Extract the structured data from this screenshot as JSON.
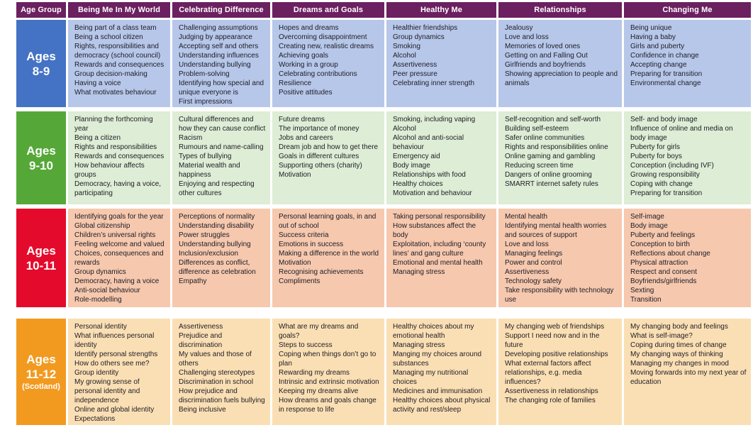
{
  "colors": {
    "header_bg": "#6B2060",
    "header_text": "#FFFFFF",
    "body_text": "#1D1D26",
    "page_bg": "#FFFFFF"
  },
  "table": {
    "columns": [
      "Age Group",
      "Being Me In My World",
      "Celebrating Difference",
      "Dreams and Goals",
      "Healthy Me",
      "Relationships",
      "Changing Me"
    ],
    "rows": [
      {
        "age_lines": [
          "Ages",
          "8-9"
        ],
        "colors": {
          "age_bg": "#4472C4",
          "cell_bg": "#B7C7E9"
        },
        "cells": [
          [
            "Being part of a class team",
            "Being a school citizen",
            "Rights, responsibilities and democracy (school council)",
            "Rewards and consequences",
            "Group decision-making",
            "Having a voice",
            "What motivates behaviour"
          ],
          [
            "Challenging assumptions",
            "Judging by appearance",
            "Accepting self and others",
            "Understanding influences",
            "Understanding bullying",
            "Problem-solving",
            "Identifying how special and unique everyone is",
            "First impressions"
          ],
          [
            "Hopes and dreams",
            "Overcoming disappointment",
            "Creating new, realistic dreams",
            "Achieving goals",
            "Working in a group",
            "Celebrating contributions",
            "Resilience",
            "Positive attitudes"
          ],
          [
            "Healthier friendships",
            "Group dynamics",
            "Smoking",
            "Alcohol",
            "Assertiveness",
            "Peer pressure",
            "Celebrating inner strength"
          ],
          [
            "Jealousy",
            "Love and loss",
            "Memories of loved ones",
            "Getting on and Falling Out",
            "Girlfriends and boyfriends",
            "Showing appreciation to people and animals"
          ],
          [
            "Being unique",
            "Having a baby",
            "Girls and puberty",
            "Confidence in change",
            "Accepting change",
            "Preparing for transition",
            "Environmental change"
          ]
        ]
      },
      {
        "age_lines": [
          "Ages",
          "9-10"
        ],
        "colors": {
          "age_bg": "#55A838",
          "cell_bg": "#DEEDD5"
        },
        "cells": [
          [
            "Planning the forthcoming year",
            "Being a citizen",
            "Rights and responsibilities",
            "Rewards and consequences",
            "How behaviour affects groups",
            "Democracy, having a voice, participating"
          ],
          [
            "Cultural differences and how they can cause conflict",
            "Racism",
            "Rumours and name-calling",
            "Types of bullying",
            "Material wealth and happiness",
            "Enjoying and respecting other cultures"
          ],
          [
            "Future dreams",
            "The importance of money",
            "Jobs and careers",
            "Dream job and how to get there",
            "Goals in different cultures",
            "Supporting others (charity)",
            "Motivation"
          ],
          [
            "Smoking, including vaping",
            "Alcohol",
            "Alcohol and anti-social behaviour",
            "Emergency aid",
            "Body image",
            "Relationships with food",
            "Healthy choices",
            "Motivation and behaviour"
          ],
          [
            "Self-recognition and self-worth",
            "Building self-esteem",
            "Safer online communities",
            "Rights and responsibilities online",
            "Online gaming and gambling",
            "Reducing screen time",
            "Dangers of online grooming",
            "SMARRT internet safety rules"
          ],
          [
            "Self- and body image",
            "Influence of online and media on body image",
            "Puberty for girls",
            "Puberty for boys",
            "Conception (including IVF)",
            "Growing responsibility",
            "Coping with change",
            "Preparing for transition"
          ]
        ]
      },
      {
        "age_lines": [
          "Ages",
          "10-11"
        ],
        "colors": {
          "age_bg": "#E40A2B",
          "cell_bg": "#F6C8AE"
        },
        "cells": [
          [
            "Identifying goals for the year",
            "Global citizenship",
            "Children’s universal rights",
            "Feeling welcome and valued",
            "Choices, consequences and rewards",
            "Group dynamics",
            "Democracy, having a voice",
            "Anti-social behaviour",
            "Role-modelling"
          ],
          [
            "Perceptions of normality",
            "Understanding disability",
            "Power struggles",
            "Understanding bullying",
            "Inclusion/exclusion",
            "Differences as conflict, difference as celebration",
            "Empathy"
          ],
          [
            "Personal learning goals, in and out of school",
            "Success criteria",
            "Emotions in success",
            "Making a difference in the world",
            "Motivation",
            "Recognising achievements",
            "Compliments"
          ],
          [
            "Taking personal responsibility",
            "How substances affect the body",
            "Exploitation, including ‘county lines’ and gang culture",
            "Emotional and mental health",
            "Managing stress"
          ],
          [
            "Mental health",
            "Identifying mental health worries and sources of support",
            "Love and loss",
            "Managing feelings",
            "Power and control",
            "Assertiveness",
            "Technology safety",
            "Take responsibility with technology use"
          ],
          [
            "Self-image",
            "Body image",
            "Puberty and feelings",
            "Conception to birth",
            "Reflections about change",
            "Physical attraction",
            "Respect and consent",
            "Boyfriends/girlfriends",
            "Sexting",
            "Transition"
          ]
        ]
      },
      {
        "age_lines": [
          "Ages",
          "11-12",
          "(Scotland)"
        ],
        "colors": {
          "age_bg": "#F29A1F",
          "cell_bg": "#FBDFB4"
        },
        "cells": [
          [
            "Personal identity",
            "What influences personal identity",
            "Identify personal strengths",
            "How do others see me?",
            "Group identity",
            "My growing sense of personal identity and independence",
            "Online and global identity",
            "Expectations"
          ],
          [
            "Assertiveness",
            "Prejudice and discrimination",
            "My values and those of others",
            "Challenging stereotypes",
            "Discrimination in school",
            "How prejudice and discrimination fuels bullying",
            "Being inclusive"
          ],
          [
            "What are my dreams and goals?",
            "Steps to success",
            "Coping when things don’t go to plan",
            "Rewarding my dreams",
            "Intrinsic and extrinsic motivation",
            "Keeping my dreams alive",
            "How dreams and goals change in response to life"
          ],
          [
            "Healthy choices about my emotional health",
            "Managing stress",
            "Manging my choices around substances",
            "Managing my nutritional choices",
            "Medicines and immunisation",
            "Healthy choices about physical activity and rest/sleep"
          ],
          [
            "My changing web of friendships",
            "Support I need now and in the future",
            "Developing positive relationships",
            "What external factors affect relationships, e.g. media influences?",
            "Assertiveness in relationships",
            "The changing role of families"
          ],
          [
            "My changing body and feelings",
            "What is self-image?",
            "Coping during times of change",
            "My changing ways of thinking",
            "Managing my changes in mood",
            "Moving forwards into my next year of education"
          ]
        ]
      }
    ]
  }
}
